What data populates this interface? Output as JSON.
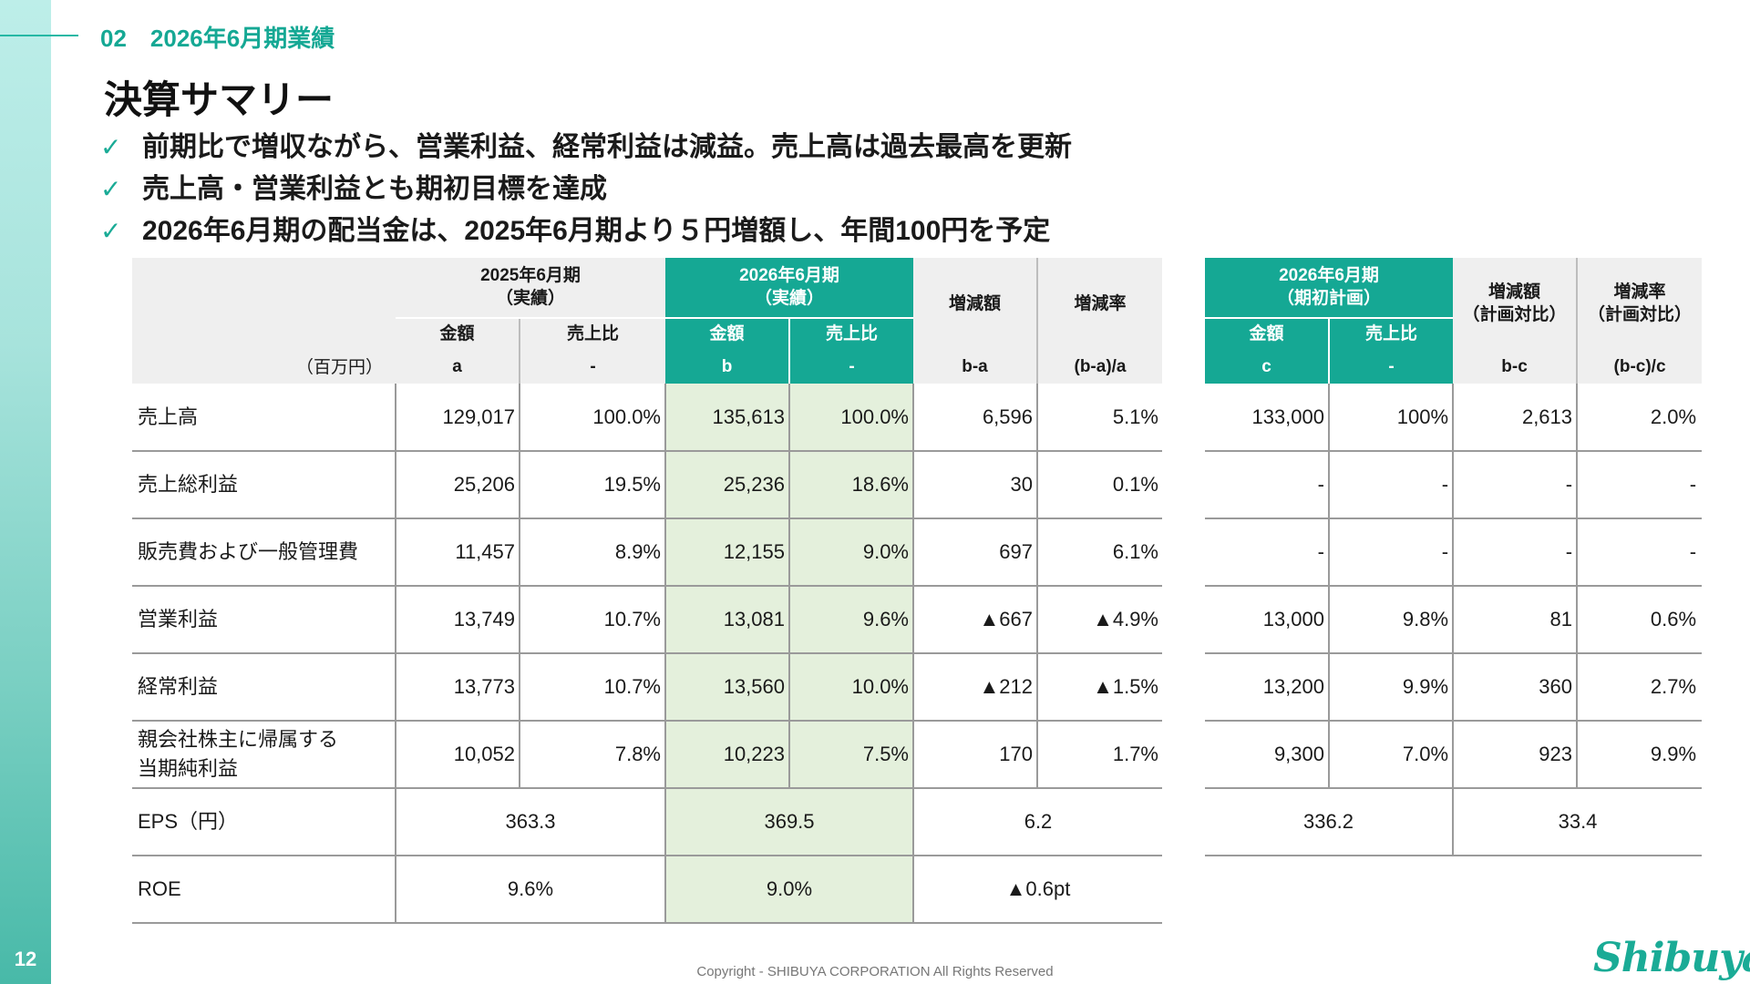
{
  "page_number": "12",
  "section": {
    "number": "02",
    "title": "2026年6月期業績"
  },
  "title": "決算サマリー",
  "bullets": [
    "前期比で増収ながら、営業利益、経常利益は減益。売上高は過去最高を更新",
    "売上高・営業利益とも期初目標を達成",
    "2026年6月期の配当金は、2025年6月期より５円増額し、年間100円を予定"
  ],
  "check_glyph": "✓",
  "main_table": {
    "unit": "（百万円）",
    "groups": {
      "prev": {
        "line1": "2025年6月期",
        "line2": "（実績）"
      },
      "curr": {
        "line1": "2026年6月期",
        "line2": "（実績）"
      },
      "diff": "増減額",
      "rate": "増減率"
    },
    "subheaders": {
      "amount": "金額",
      "ratio": "売上比"
    },
    "codes": [
      "a",
      "-",
      "b",
      "-",
      "b-a",
      "(b-a)/a"
    ],
    "rows": [
      {
        "label": "売上高",
        "a": "129,017",
        "a_ratio": "100.0%",
        "b": "135,613",
        "b_ratio": "100.0%",
        "diff": "6,596",
        "rate": "5.1%"
      },
      {
        "label": "売上総利益",
        "a": "25,206",
        "a_ratio": "19.5%",
        "b": "25,236",
        "b_ratio": "18.6%",
        "diff": "30",
        "rate": "0.1%"
      },
      {
        "label": "販売費および一般管理費",
        "a": "11,457",
        "a_ratio": "8.9%",
        "b": "12,155",
        "b_ratio": "9.0%",
        "diff": "697",
        "rate": "6.1%"
      },
      {
        "label": "営業利益",
        "a": "13,749",
        "a_ratio": "10.7%",
        "b": "13,081",
        "b_ratio": "9.6%",
        "diff": "▲667",
        "rate": "▲4.9%"
      },
      {
        "label": "経常利益",
        "a": "13,773",
        "a_ratio": "10.7%",
        "b": "13,560",
        "b_ratio": "10.0%",
        "diff": "▲212",
        "rate": "▲1.5%"
      },
      {
        "label1": "親会社株主に帰属する",
        "label2": "当期純利益",
        "a": "10,052",
        "a_ratio": "7.8%",
        "b": "10,223",
        "b_ratio": "7.5%",
        "diff": "170",
        "rate": "1.7%"
      }
    ],
    "eps": {
      "label": "EPS（円）",
      "a": "363.3",
      "b": "369.5",
      "diff": "6.2"
    },
    "roe": {
      "label": "ROE",
      "a": "9.6%",
      "b": "9.0%",
      "diff": "▲0.6pt"
    }
  },
  "plan_table": {
    "plan": {
      "line1": "2026年6月期",
      "line2": "（期初計画）"
    },
    "diff": {
      "line1": "増減額",
      "line2": "（計画対比）"
    },
    "rate": {
      "line1": "増減率",
      "line2": "（計画対比）"
    },
    "subheaders": {
      "amount": "金額",
      "ratio": "売上比"
    },
    "codes": [
      "c",
      "-",
      "b-c",
      "(b-c)/c"
    ],
    "rows": [
      {
        "c": "133,000",
        "c_ratio": "100%",
        "diff": "2,613",
        "rate": "2.0%"
      },
      {
        "c": "-",
        "c_ratio": "-",
        "diff": "-",
        "rate": "-"
      },
      {
        "c": "-",
        "c_ratio": "-",
        "diff": "-",
        "rate": "-"
      },
      {
        "c": "13,000",
        "c_ratio": "9.8%",
        "diff": "81",
        "rate": "0.6%"
      },
      {
        "c": "13,200",
        "c_ratio": "9.9%",
        "diff": "360",
        "rate": "2.7%"
      },
      {
        "c": "9,300",
        "c_ratio": "7.0%",
        "diff": "923",
        "rate": "9.9%"
      }
    ],
    "eps": {
      "c": "336.2",
      "diff": "33.4"
    }
  },
  "footer": "Copyright - SHIBUYA CORPORATION  All Rights Reserved",
  "logo_text": "Shibuya",
  "colors": {
    "accent": "#15a894",
    "highlight": "#e4f0dc",
    "header_gray": "#efefef"
  }
}
